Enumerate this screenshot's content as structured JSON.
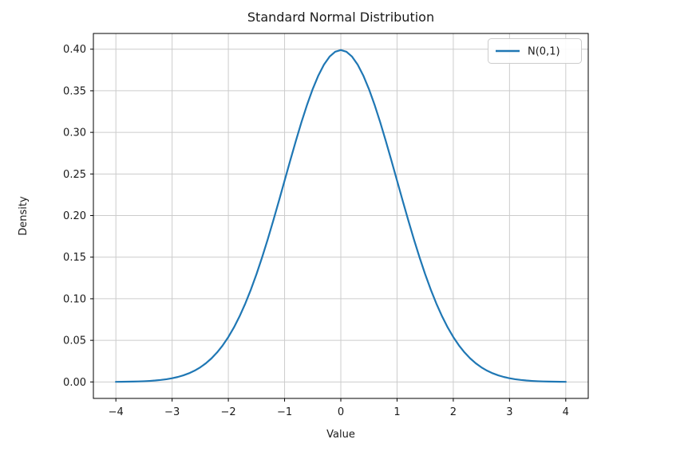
{
  "figure": {
    "background": "#ffffff"
  },
  "colors": {
    "line": "#1f77b4",
    "grid": "#cccccc",
    "spine": "#000000",
    "tick": "#000000",
    "text": "#1a1a1a",
    "legend_border": "#cccccc",
    "legend_background": "#ffffff"
  },
  "chart_data": {
    "type": "line",
    "title": "Standard Normal Distribution",
    "xlabel": "Value",
    "ylabel": "Density",
    "xlim": [
      -4.4,
      4.4
    ],
    "ylim": [
      -0.0198,
      0.4189
    ],
    "grid": true,
    "legend_position": "upper right",
    "xticks": {
      "values": [
        -4,
        -3,
        -2,
        -1,
        0,
        1,
        2,
        3,
        4
      ],
      "labels": [
        "−4",
        "−3",
        "−2",
        "−1",
        "0",
        "1",
        "2",
        "3",
        "4"
      ]
    },
    "yticks": {
      "values": [
        0.0,
        0.05,
        0.1,
        0.15,
        0.2,
        0.25,
        0.3,
        0.35,
        0.4
      ],
      "labels": [
        "0.00",
        "0.05",
        "0.10",
        "0.15",
        "0.20",
        "0.25",
        "0.30",
        "0.35",
        "0.40"
      ]
    },
    "legend": [
      {
        "label": "N(0,1)",
        "color": "#1f77b4"
      }
    ],
    "series": [
      {
        "name": "N(0,1)",
        "color": "#1f77b4",
        "x": [
          -4,
          -3.9,
          -3.8,
          -3.7,
          -3.6,
          -3.5,
          -3.4,
          -3.3,
          -3.2,
          -3.1,
          -3,
          -2.9,
          -2.8,
          -2.7,
          -2.6,
          -2.5,
          -2.4,
          -2.3,
          -2.2,
          -2.1,
          -2,
          -1.9,
          -1.8,
          -1.7,
          -1.6,
          -1.5,
          -1.4,
          -1.3,
          -1.2,
          -1.1,
          -1,
          -0.9,
          -0.8,
          -0.7,
          -0.6,
          -0.5,
          -0.4,
          -0.3,
          -0.2,
          -0.1,
          0,
          0.1,
          0.2,
          0.3,
          0.4,
          0.5,
          0.6,
          0.7,
          0.8,
          0.9,
          1,
          1.1,
          1.2,
          1.3,
          1.4,
          1.5,
          1.6,
          1.7,
          1.8,
          1.9,
          2,
          2.1,
          2.2,
          2.3,
          2.4,
          2.5,
          2.6,
          2.7,
          2.8,
          2.9,
          3,
          3.1,
          3.2,
          3.3,
          3.4,
          3.5,
          3.6,
          3.7,
          3.8,
          3.9,
          4
        ],
        "y": [
          0.00013,
          0.0002,
          0.00029,
          0.00042,
          0.00061,
          0.00087,
          0.00123,
          0.00172,
          0.00238,
          0.00327,
          0.00443,
          0.00595,
          0.00792,
          0.01042,
          0.01358,
          0.01753,
          0.02239,
          0.02833,
          0.03547,
          0.04398,
          0.05399,
          0.06562,
          0.07895,
          0.09405,
          0.11092,
          0.12952,
          0.14973,
          0.17137,
          0.19419,
          0.21785,
          0.24197,
          0.26609,
          0.28969,
          0.31225,
          0.33322,
          0.35207,
          0.36827,
          0.38139,
          0.39104,
          0.39695,
          0.39894,
          0.39695,
          0.39104,
          0.38139,
          0.36827,
          0.35207,
          0.33322,
          0.31225,
          0.28969,
          0.26609,
          0.24197,
          0.21785,
          0.19419,
          0.17137,
          0.14973,
          0.12952,
          0.11092,
          0.09405,
          0.07895,
          0.06562,
          0.05399,
          0.04398,
          0.03547,
          0.02833,
          0.02239,
          0.01753,
          0.01358,
          0.01042,
          0.00792,
          0.00595,
          0.00443,
          0.00327,
          0.00238,
          0.00172,
          0.00123,
          0.00087,
          0.00061,
          0.00042,
          0.00029,
          0.0002,
          0.00013
        ]
      }
    ]
  }
}
